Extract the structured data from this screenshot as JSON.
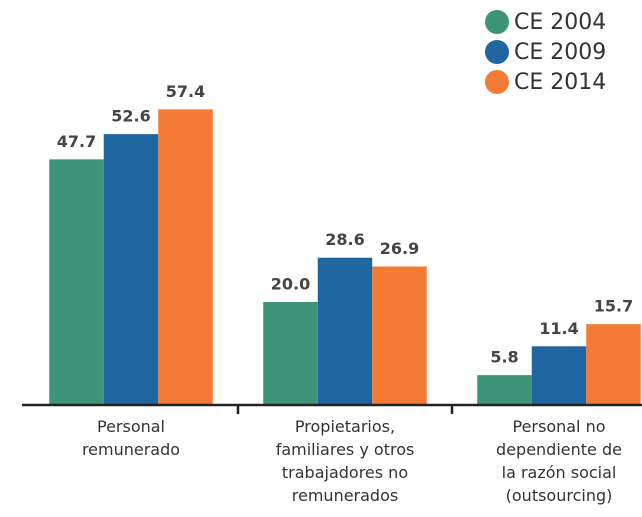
{
  "chart_data": {
    "type": "bar",
    "categories": [
      "Personal\nremunerado",
      "Propietarios,\nfamiliares y otros\ntrabajadores no\nremunerados",
      "Personal no\ndependiente de\nla razón social\n(outsourcing)"
    ],
    "series": [
      {
        "name": "CE 2004",
        "color": "#3d9479",
        "values": [
          47.7,
          20.0,
          5.8
        ],
        "value_labels": [
          "47.7",
          "20.0",
          "5.8"
        ]
      },
      {
        "name": "CE 2009",
        "color": "#1f65a0",
        "values": [
          52.6,
          28.6,
          11.4
        ],
        "value_labels": [
          "52.6",
          "28.6",
          "11.4"
        ]
      },
      {
        "name": "CE 2014",
        "color": "#f47b35",
        "values": [
          57.4,
          26.9,
          15.7
        ],
        "value_labels": [
          "57.4",
          "26.9",
          "15.7"
        ]
      }
    ],
    "ylim": [
      0,
      60
    ],
    "legend": "top-right"
  }
}
